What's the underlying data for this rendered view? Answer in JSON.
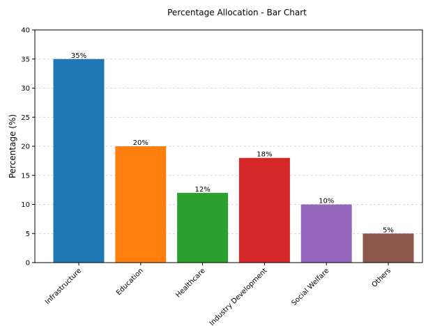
{
  "chart_data": {
    "type": "bar",
    "title": "Percentage Allocation - Bar Chart",
    "xlabel": "",
    "ylabel": "Percentage (%)",
    "ylim": [
      0,
      40
    ],
    "yticks": [
      0,
      5,
      10,
      15,
      20,
      25,
      30,
      35,
      40
    ],
    "grid": "y-dashed",
    "categories": [
      "Infrastructure",
      "Education",
      "Healthcare",
      "Industry Development",
      "Social Welfare",
      "Others"
    ],
    "values": [
      35,
      20,
      12,
      18,
      10,
      5
    ],
    "data_labels": [
      "35%",
      "20%",
      "12%",
      "18%",
      "10%",
      "5%"
    ],
    "colors": [
      "#1f77b4",
      "#ff7f0e",
      "#2ca02c",
      "#d62728",
      "#9467bd",
      "#8c564b"
    ]
  }
}
